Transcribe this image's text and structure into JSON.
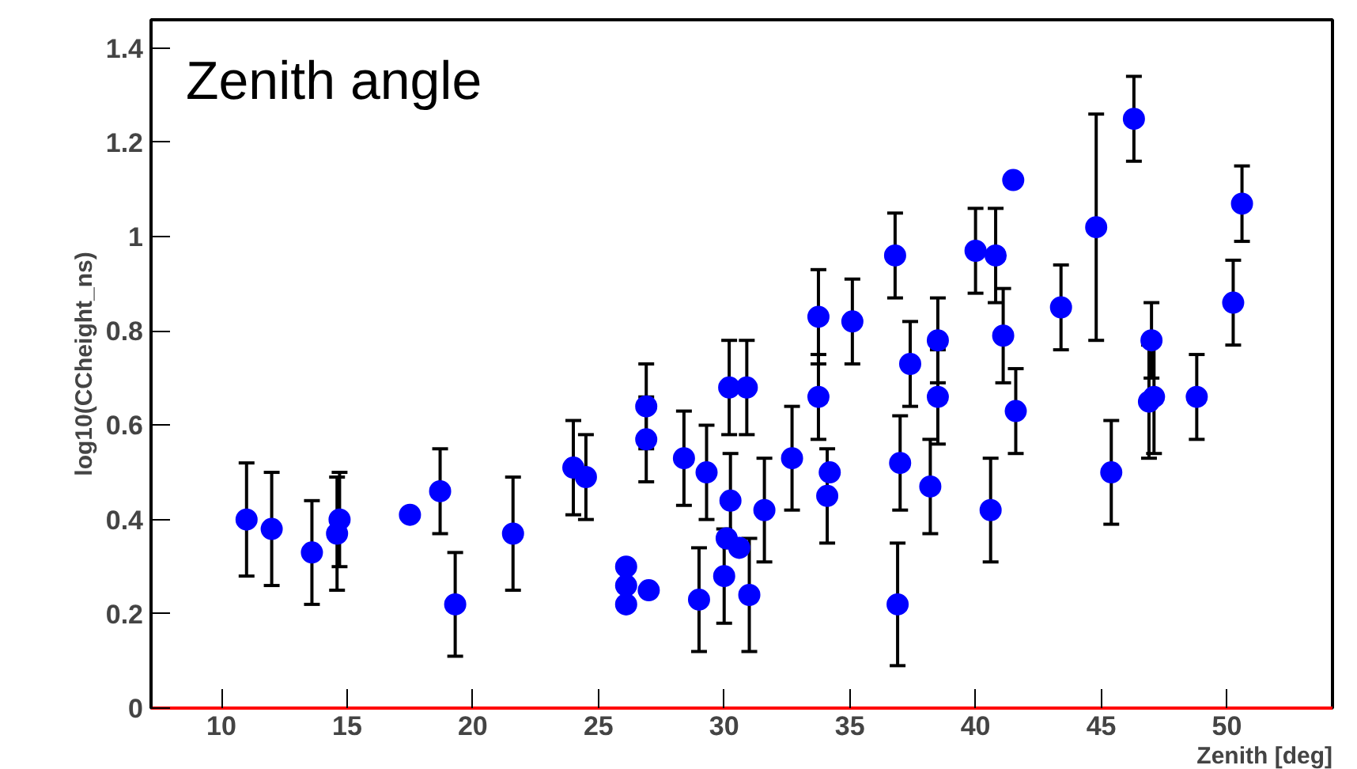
{
  "chart_data": {
    "type": "scatter",
    "title": "Zenith angle",
    "xlabel": "Zenith [deg]",
    "ylabel": "log10(CCheight_ns)",
    "xlim": [
      7.2,
      54.2
    ],
    "xticks": [
      10,
      15,
      20,
      25,
      30,
      35,
      40,
      45,
      50
    ],
    "ylim": [
      0,
      1.46
    ],
    "yticks": [
      0,
      0.2,
      0.4,
      0.6,
      0.8,
      1,
      1.2,
      1.4
    ],
    "grid": false,
    "marker": "circle",
    "series": [
      {
        "color": "#0000ff",
        "x": [
          11.0,
          12.0,
          13.6,
          14.6,
          14.7,
          17.5,
          18.7,
          19.3,
          21.6,
          24.0,
          24.5,
          26.1,
          26.1,
          26.1,
          26.9,
          26.9,
          27.0,
          28.4,
          29.0,
          29.3,
          30.0,
          30.1,
          30.2,
          30.25,
          30.6,
          30.9,
          31.0,
          31.6,
          32.7,
          33.75,
          33.75,
          34.1,
          34.2,
          35.1,
          36.8,
          36.9,
          37.0,
          37.4,
          38.2,
          38.5,
          38.5,
          40.0,
          40.6,
          40.8,
          41.1,
          41.5,
          41.6,
          43.4,
          44.8,
          45.4,
          46.3,
          46.9,
          47.0,
          47.1,
          48.8,
          50.25,
          50.6
        ],
        "values": [
          0.4,
          0.38,
          0.33,
          0.37,
          0.4,
          0.41,
          0.46,
          0.22,
          0.37,
          0.51,
          0.49,
          0.3,
          0.26,
          0.22,
          0.64,
          0.57,
          0.25,
          0.53,
          0.23,
          0.5,
          0.28,
          0.36,
          0.68,
          0.44,
          0.34,
          0.68,
          0.24,
          0.42,
          0.53,
          0.83,
          0.66,
          0.45,
          0.5,
          0.82,
          0.96,
          0.22,
          0.52,
          0.73,
          0.47,
          0.78,
          0.66,
          0.97,
          0.42,
          0.96,
          0.79,
          1.12,
          0.63,
          0.85,
          1.02,
          0.5,
          1.25,
          0.65,
          0.78,
          0.66,
          0.66,
          0.86,
          1.07
        ],
        "errors": [
          0.12,
          0.12,
          0.11,
          0.12,
          0.1,
          null,
          0.09,
          0.11,
          0.12,
          0.1,
          0.09,
          null,
          null,
          null,
          0.09,
          0.09,
          null,
          0.1,
          0.11,
          0.1,
          0.1,
          null,
          0.1,
          0.1,
          null,
          0.1,
          0.12,
          0.11,
          0.11,
          0.1,
          0.09,
          0.1,
          null,
          0.09,
          0.09,
          0.13,
          0.1,
          0.09,
          0.1,
          0.09,
          0.1,
          0.09,
          0.11,
          0.1,
          0.1,
          null,
          0.09,
          0.09,
          0.24,
          0.11,
          0.09,
          0.12,
          0.08,
          0.12,
          0.09,
          0.09,
          0.08
        ]
      }
    ]
  }
}
